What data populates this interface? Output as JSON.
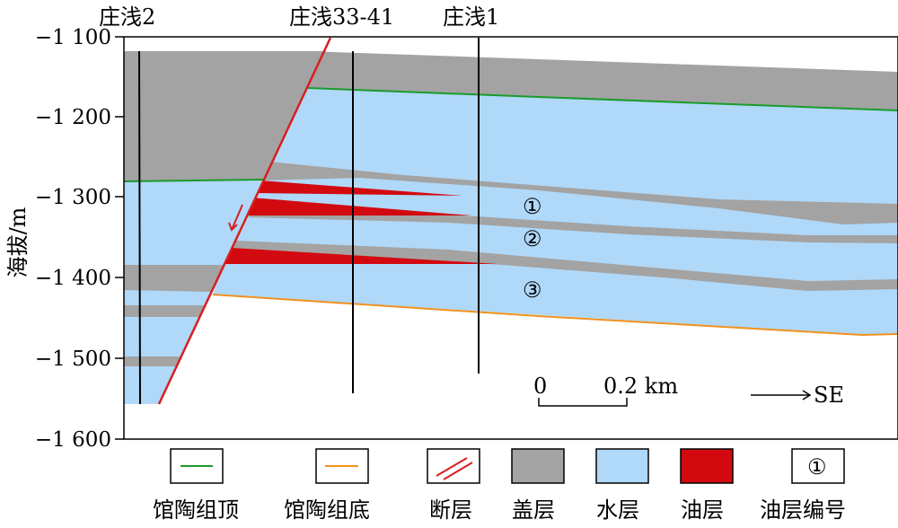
{
  "y_axis": {
    "title": "海拔/m",
    "ticks": [
      "−1 100",
      "−1 200",
      "−1 300",
      "−1 400",
      "−1 500",
      "−1 600"
    ]
  },
  "wells": [
    "庄浅2",
    "庄浅33-41",
    "庄浅1"
  ],
  "layer_numbers": [
    "①",
    "②",
    "③"
  ],
  "scale_bar": {
    "start": "0",
    "end": "0.2 km"
  },
  "direction": "SE",
  "legend": [
    {
      "label": "馆陶组顶",
      "kind": "line",
      "color": "#1a9b2a"
    },
    {
      "label": "馆陶组底",
      "kind": "line",
      "color": "#f0921e"
    },
    {
      "label": "断层",
      "kind": "fault",
      "color": "#d81e1e"
    },
    {
      "label": "盖层",
      "kind": "fill",
      "color": "#a3a3a3"
    },
    {
      "label": "水层",
      "kind": "fill",
      "color": "#b0d8f8"
    },
    {
      "label": "油层",
      "kind": "fill",
      "color": "#d20a10"
    },
    {
      "label": "油层编号",
      "kind": "number",
      "symbol": "①"
    }
  ],
  "colors": {
    "cap": "#a3a3a3",
    "water": "#b0d8f8",
    "oil": "#d20a10",
    "fault": "#d81e1e",
    "top": "#1a9b2a",
    "bottom": "#f0921e"
  }
}
